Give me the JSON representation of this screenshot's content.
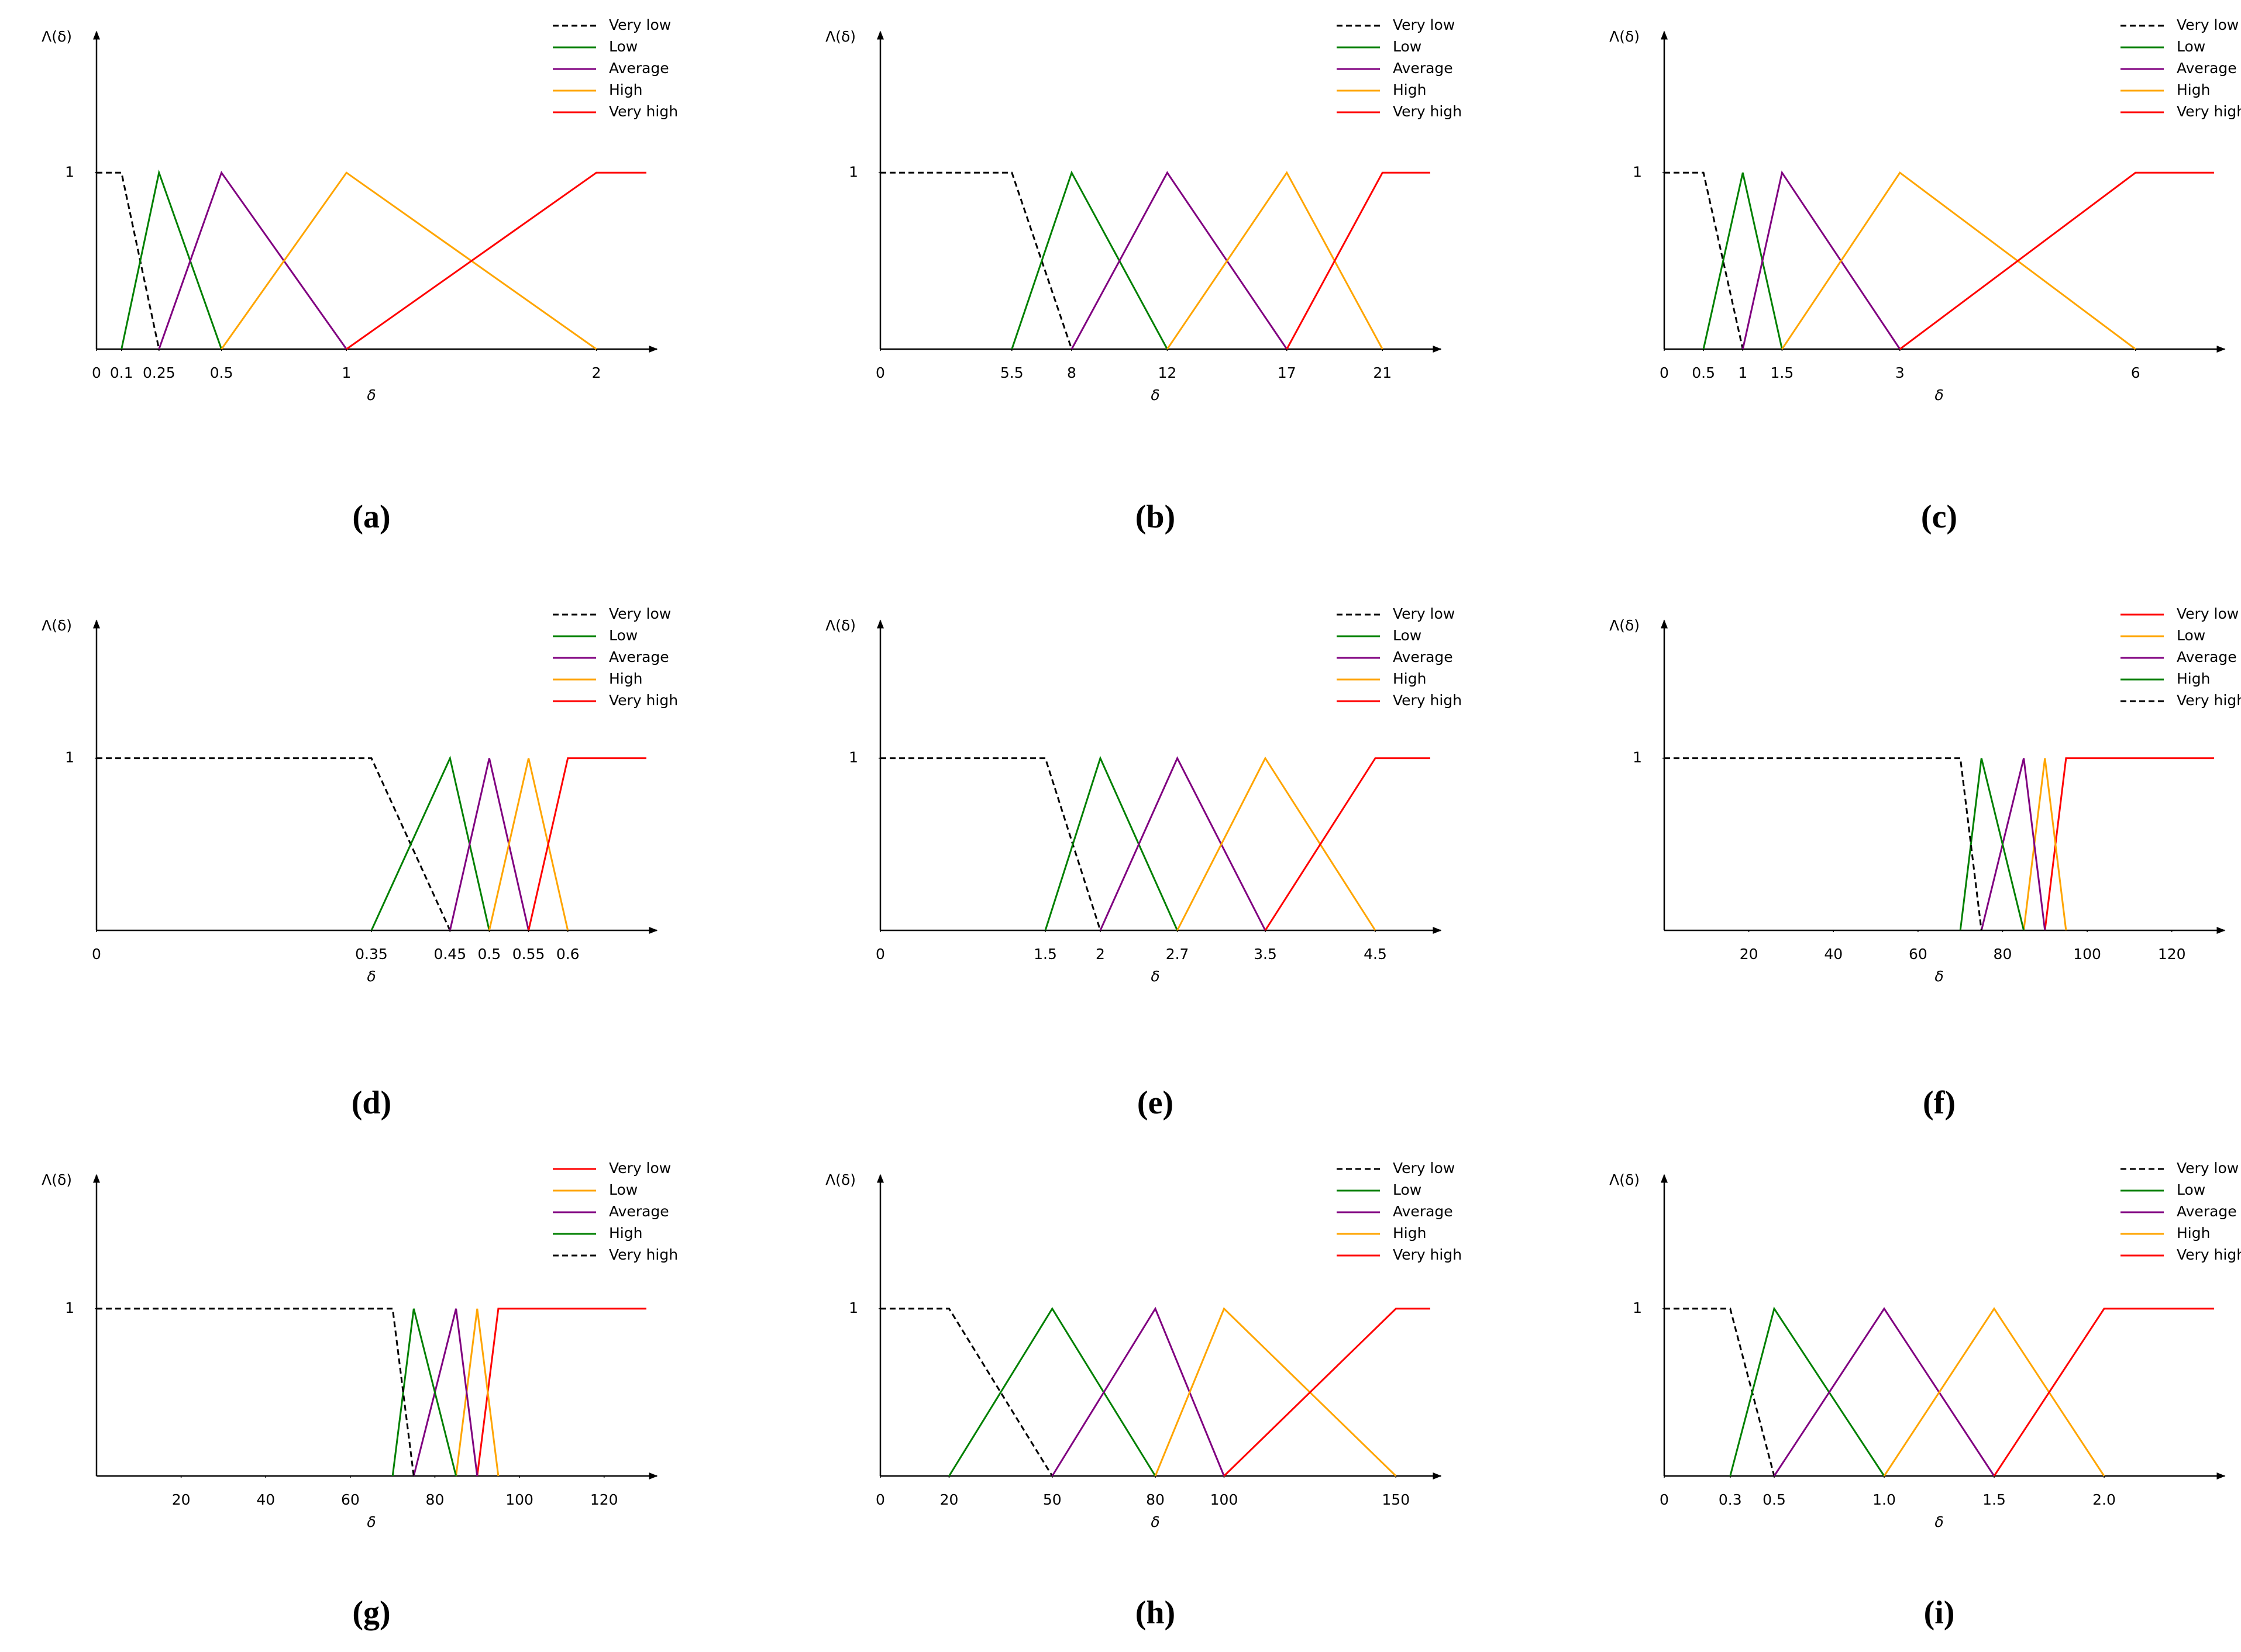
{
  "chart_data": [
    {
      "type": "line",
      "label": "(a)",
      "xlabel": "δ",
      "ylabel": "Λ(δ)",
      "xlim": [
        0,
        2.2
      ],
      "ylim": [
        0,
        1.8
      ],
      "xticks": [
        0,
        0.1,
        0.25,
        0.5,
        1,
        2
      ],
      "yticks": [
        1
      ],
      "series": [
        {
          "name": "Very low",
          "color": "#000000",
          "dash": true,
          "x": [
            0,
            0.1,
            0.25
          ],
          "values": [
            1,
            1,
            0
          ]
        },
        {
          "name": "Low",
          "color": "#008000",
          "dash": false,
          "x": [
            0.1,
            0.25,
            0.5
          ],
          "values": [
            0,
            1,
            0
          ]
        },
        {
          "name": "Average",
          "color": "#800080",
          "dash": false,
          "x": [
            0.25,
            0.5,
            1
          ],
          "values": [
            0,
            1,
            0
          ]
        },
        {
          "name": "High",
          "color": "#FFA500",
          "dash": false,
          "x": [
            0.5,
            1,
            2
          ],
          "values": [
            0,
            1,
            0
          ]
        },
        {
          "name": "Very high",
          "color": "#FF0000",
          "dash": false,
          "x": [
            1,
            2,
            2.2
          ],
          "values": [
            0,
            1,
            1
          ]
        }
      ]
    },
    {
      "type": "line",
      "label": "(b)",
      "xlabel": "δ",
      "ylabel": "Λ(δ)",
      "xlim": [
        0,
        23
      ],
      "ylim": [
        0,
        1.8
      ],
      "xticks": [
        0,
        5.5,
        8,
        12,
        17,
        21
      ],
      "yticks": [
        1
      ],
      "series": [
        {
          "name": "Very low",
          "color": "#000000",
          "dash": true,
          "x": [
            0,
            5.5,
            8
          ],
          "values": [
            1,
            1,
            0
          ]
        },
        {
          "name": "Low",
          "color": "#008000",
          "dash": false,
          "x": [
            5.5,
            8,
            12
          ],
          "values": [
            0,
            1,
            0
          ]
        },
        {
          "name": "Average",
          "color": "#800080",
          "dash": false,
          "x": [
            8,
            12,
            17
          ],
          "values": [
            0,
            1,
            0
          ]
        },
        {
          "name": "High",
          "color": "#FFA500",
          "dash": false,
          "x": [
            12,
            17,
            21
          ],
          "values": [
            0,
            1,
            0
          ]
        },
        {
          "name": "Very high",
          "color": "#FF0000",
          "dash": false,
          "x": [
            17,
            21,
            23
          ],
          "values": [
            0,
            1,
            1
          ]
        }
      ]
    },
    {
      "type": "line",
      "label": "(c)",
      "xlabel": "δ",
      "ylabel": "Λ(δ)",
      "xlim": [
        0,
        7
      ],
      "ylim": [
        0,
        1.8
      ],
      "xticks": [
        0,
        0.5,
        1,
        1.5,
        3,
        6
      ],
      "yticks": [
        1
      ],
      "series": [
        {
          "name": "Very low",
          "color": "#000000",
          "dash": true,
          "x": [
            0,
            0.5,
            1
          ],
          "values": [
            1,
            1,
            0
          ]
        },
        {
          "name": "Low",
          "color": "#008000",
          "dash": false,
          "x": [
            0.5,
            1,
            1.5
          ],
          "values": [
            0,
            1,
            0
          ]
        },
        {
          "name": "Average",
          "color": "#800080",
          "dash": false,
          "x": [
            1,
            1.5,
            3
          ],
          "values": [
            0,
            1,
            0
          ]
        },
        {
          "name": "High",
          "color": "#FFA500",
          "dash": false,
          "x": [
            1.5,
            3,
            6
          ],
          "values": [
            0,
            1,
            0
          ]
        },
        {
          "name": "Very high",
          "color": "#FF0000",
          "dash": false,
          "x": [
            3,
            6,
            7
          ],
          "values": [
            0,
            1,
            1
          ]
        }
      ]
    },
    {
      "type": "line",
      "label": "(d)",
      "xlabel": "δ",
      "ylabel": "Λ(δ)",
      "xlim": [
        0,
        0.7
      ],
      "ylim": [
        0,
        1.8
      ],
      "xticks": [
        0,
        0.35,
        0.45,
        0.5,
        0.55,
        0.6
      ],
      "yticks": [
        1
      ],
      "series": [
        {
          "name": "Very low",
          "color": "#000000",
          "dash": true,
          "x": [
            0,
            0.35,
            0.45
          ],
          "values": [
            1,
            1,
            0
          ]
        },
        {
          "name": "Low",
          "color": "#008000",
          "dash": false,
          "x": [
            0.35,
            0.45,
            0.5
          ],
          "values": [
            0,
            1,
            0
          ]
        },
        {
          "name": "Average",
          "color": "#800080",
          "dash": false,
          "x": [
            0.45,
            0.5,
            0.55
          ],
          "values": [
            0,
            1,
            0
          ]
        },
        {
          "name": "High",
          "color": "#FFA500",
          "dash": false,
          "x": [
            0.5,
            0.55,
            0.6
          ],
          "values": [
            0,
            1,
            0
          ]
        },
        {
          "name": "Very high",
          "color": "#FF0000",
          "dash": false,
          "x": [
            0.55,
            0.6,
            0.7
          ],
          "values": [
            0,
            1,
            1
          ]
        }
      ]
    },
    {
      "type": "line",
      "label": "(e)",
      "xlabel": "δ",
      "ylabel": "Λ(δ)",
      "xlim": [
        0,
        5
      ],
      "ylim": [
        0,
        1.8
      ],
      "xticks": [
        0,
        1.5,
        2,
        2.7,
        3.5,
        4.5
      ],
      "yticks": [
        1
      ],
      "series": [
        {
          "name": "Very low",
          "color": "#000000",
          "dash": true,
          "x": [
            0,
            1.5,
            2
          ],
          "values": [
            1,
            1,
            0
          ]
        },
        {
          "name": "Low",
          "color": "#008000",
          "dash": false,
          "x": [
            1.5,
            2,
            2.7
          ],
          "values": [
            0,
            1,
            0
          ]
        },
        {
          "name": "Average",
          "color": "#800080",
          "dash": false,
          "x": [
            2,
            2.7,
            3.5
          ],
          "values": [
            0,
            1,
            0
          ]
        },
        {
          "name": "High",
          "color": "#FFA500",
          "dash": false,
          "x": [
            2.7,
            3.5,
            4.5
          ],
          "values": [
            0,
            1,
            0
          ]
        },
        {
          "name": "Very high",
          "color": "#FF0000",
          "dash": false,
          "x": [
            3.5,
            4.5,
            5
          ],
          "values": [
            0,
            1,
            1
          ]
        }
      ]
    },
    {
      "type": "line",
      "label": "(f)",
      "xlabel": "δ",
      "ylabel": "Λ(δ)",
      "xlim": [
        0,
        130
      ],
      "ylim": [
        0,
        1.8
      ],
      "xticks": [
        20,
        40,
        60,
        80,
        100,
        120
      ],
      "yticks": [
        1
      ],
      "series": [
        {
          "name": "Very low",
          "color": "#FF0000",
          "dash": false,
          "x": [
            90,
            95,
            130
          ],
          "values": [
            0,
            1,
            1
          ]
        },
        {
          "name": "Low",
          "color": "#FFA500",
          "dash": false,
          "x": [
            85,
            90,
            95
          ],
          "values": [
            0,
            1,
            0
          ]
        },
        {
          "name": "Average",
          "color": "#800080",
          "dash": false,
          "x": [
            75,
            85,
            90
          ],
          "values": [
            0,
            1,
            0
          ]
        },
        {
          "name": "High",
          "color": "#008000",
          "dash": false,
          "x": [
            70,
            75,
            85
          ],
          "values": [
            0,
            1,
            0
          ]
        },
        {
          "name": "Very high",
          "color": "#000000",
          "dash": true,
          "x": [
            0,
            70,
            75
          ],
          "values": [
            1,
            1,
            0
          ]
        }
      ]
    },
    {
      "type": "line",
      "label": "(g)",
      "xlabel": "δ",
      "ylabel": "Λ(δ)",
      "xlim": [
        0,
        130
      ],
      "ylim": [
        0,
        1.8
      ],
      "xticks": [
        20,
        40,
        60,
        80,
        100,
        120
      ],
      "yticks": [
        1
      ],
      "series": [
        {
          "name": "Very low",
          "color": "#FF0000",
          "dash": false,
          "x": [
            90,
            95,
            130
          ],
          "values": [
            0,
            1,
            1
          ]
        },
        {
          "name": "Low",
          "color": "#FFA500",
          "dash": false,
          "x": [
            85,
            90,
            95
          ],
          "values": [
            0,
            1,
            0
          ]
        },
        {
          "name": "Average",
          "color": "#800080",
          "dash": false,
          "x": [
            75,
            85,
            90
          ],
          "values": [
            0,
            1,
            0
          ]
        },
        {
          "name": "High",
          "color": "#008000",
          "dash": false,
          "x": [
            70,
            75,
            85
          ],
          "values": [
            0,
            1,
            0
          ]
        },
        {
          "name": "Very high",
          "color": "#000000",
          "dash": true,
          "x": [
            0,
            70,
            75
          ],
          "values": [
            1,
            1,
            0
          ]
        }
      ]
    },
    {
      "type": "line",
      "label": "(h)",
      "xlabel": "δ",
      "ylabel": "Λ(δ)",
      "xlim": [
        0,
        160
      ],
      "ylim": [
        0,
        1.8
      ],
      "xticks": [
        0,
        20,
        50,
        80,
        100,
        150
      ],
      "yticks": [
        1
      ],
      "series": [
        {
          "name": "Very low",
          "color": "#000000",
          "dash": true,
          "x": [
            0,
            20,
            50
          ],
          "values": [
            1,
            1,
            0
          ]
        },
        {
          "name": "Low",
          "color": "#008000",
          "dash": false,
          "x": [
            20,
            50,
            80
          ],
          "values": [
            0,
            1,
            0
          ]
        },
        {
          "name": "Average",
          "color": "#800080",
          "dash": false,
          "x": [
            50,
            80,
            100
          ],
          "values": [
            0,
            1,
            0
          ]
        },
        {
          "name": "High",
          "color": "#FFA500",
          "dash": false,
          "x": [
            80,
            100,
            150
          ],
          "values": [
            0,
            1,
            0
          ]
        },
        {
          "name": "Very high",
          "color": "#FF0000",
          "dash": false,
          "x": [
            100,
            150,
            160
          ],
          "values": [
            0,
            1,
            1
          ]
        }
      ]
    },
    {
      "type": "line",
      "label": "(i)",
      "xlabel": "δ",
      "ylabel": "Λ(δ)",
      "xlim": [
        0,
        2.5
      ],
      "ylim": [
        0,
        1.8
      ],
      "xticks": [
        0,
        0.3,
        0.5,
        {
          "value": 1,
          "label": "1.0"
        },
        1.5,
        {
          "value": 2,
          "label": "2.0"
        }
      ],
      "yticks": [
        1
      ],
      "series": [
        {
          "name": "Very low",
          "color": "#000000",
          "dash": true,
          "x": [
            0,
            0.3,
            0.5
          ],
          "values": [
            1,
            1,
            0
          ]
        },
        {
          "name": "Low",
          "color": "#008000",
          "dash": false,
          "x": [
            0.3,
            0.5,
            1
          ],
          "values": [
            0,
            1,
            0
          ]
        },
        {
          "name": "Average",
          "color": "#800080",
          "dash": false,
          "x": [
            0.5,
            1,
            1.5
          ],
          "values": [
            0,
            1,
            0
          ]
        },
        {
          "name": "High",
          "color": "#FFA500",
          "dash": false,
          "x": [
            1,
            1.5,
            2
          ],
          "values": [
            0,
            1,
            0
          ]
        },
        {
          "name": "Very high",
          "color": "#FF0000",
          "dash": false,
          "x": [
            1.5,
            2,
            2.5
          ],
          "values": [
            0,
            1,
            1
          ]
        }
      ]
    }
  ]
}
